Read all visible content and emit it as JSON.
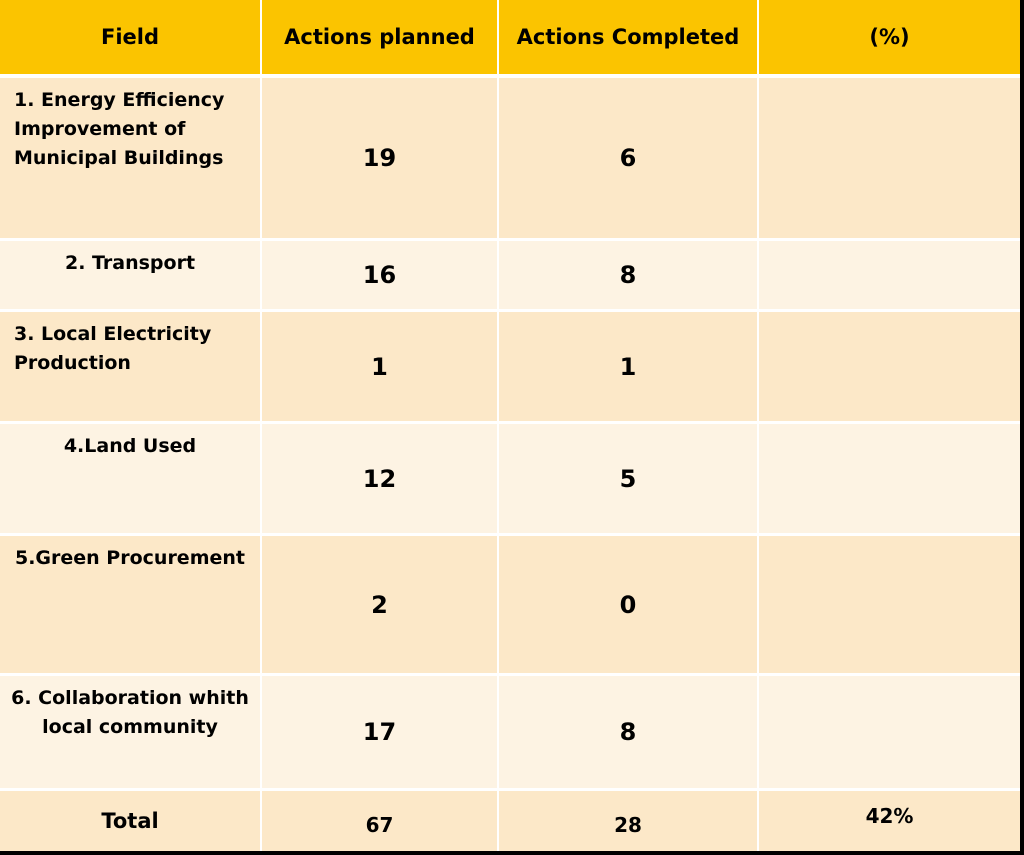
{
  "table": {
    "headers": {
      "field": "Field",
      "planned": "Actions planned",
      "completed": "Actions Completed",
      "percent": "(%)"
    },
    "rows": [
      {
        "field": "1. Energy Efficiency Improvement of Municipal Buildings",
        "planned": "19",
        "completed": "6",
        "percent": ""
      },
      {
        "field": "2. Transport",
        "planned": "16",
        "completed": "8",
        "percent": ""
      },
      {
        "field": "3. Local Electricity Production",
        "planned": "1",
        "completed": "1",
        "percent": ""
      },
      {
        "field": "4.Land Used",
        "planned": "12",
        "completed": "5",
        "percent": ""
      },
      {
        "field": "5.Green Procurement",
        "planned": "2",
        "completed": "0",
        "percent": ""
      },
      {
        "field": "6. Collaboration whith local community",
        "planned": "17",
        "completed": "8",
        "percent": ""
      }
    ],
    "total": {
      "field": "Total",
      "planned": "67",
      "completed": "28",
      "percent": "42%"
    }
  },
  "colors": {
    "header_bg": "#fbc400",
    "row_dark_bg": "#fce8c8",
    "row_light_bg": "#fdf3e3",
    "border": "#ffffff",
    "frame": "#000000"
  }
}
